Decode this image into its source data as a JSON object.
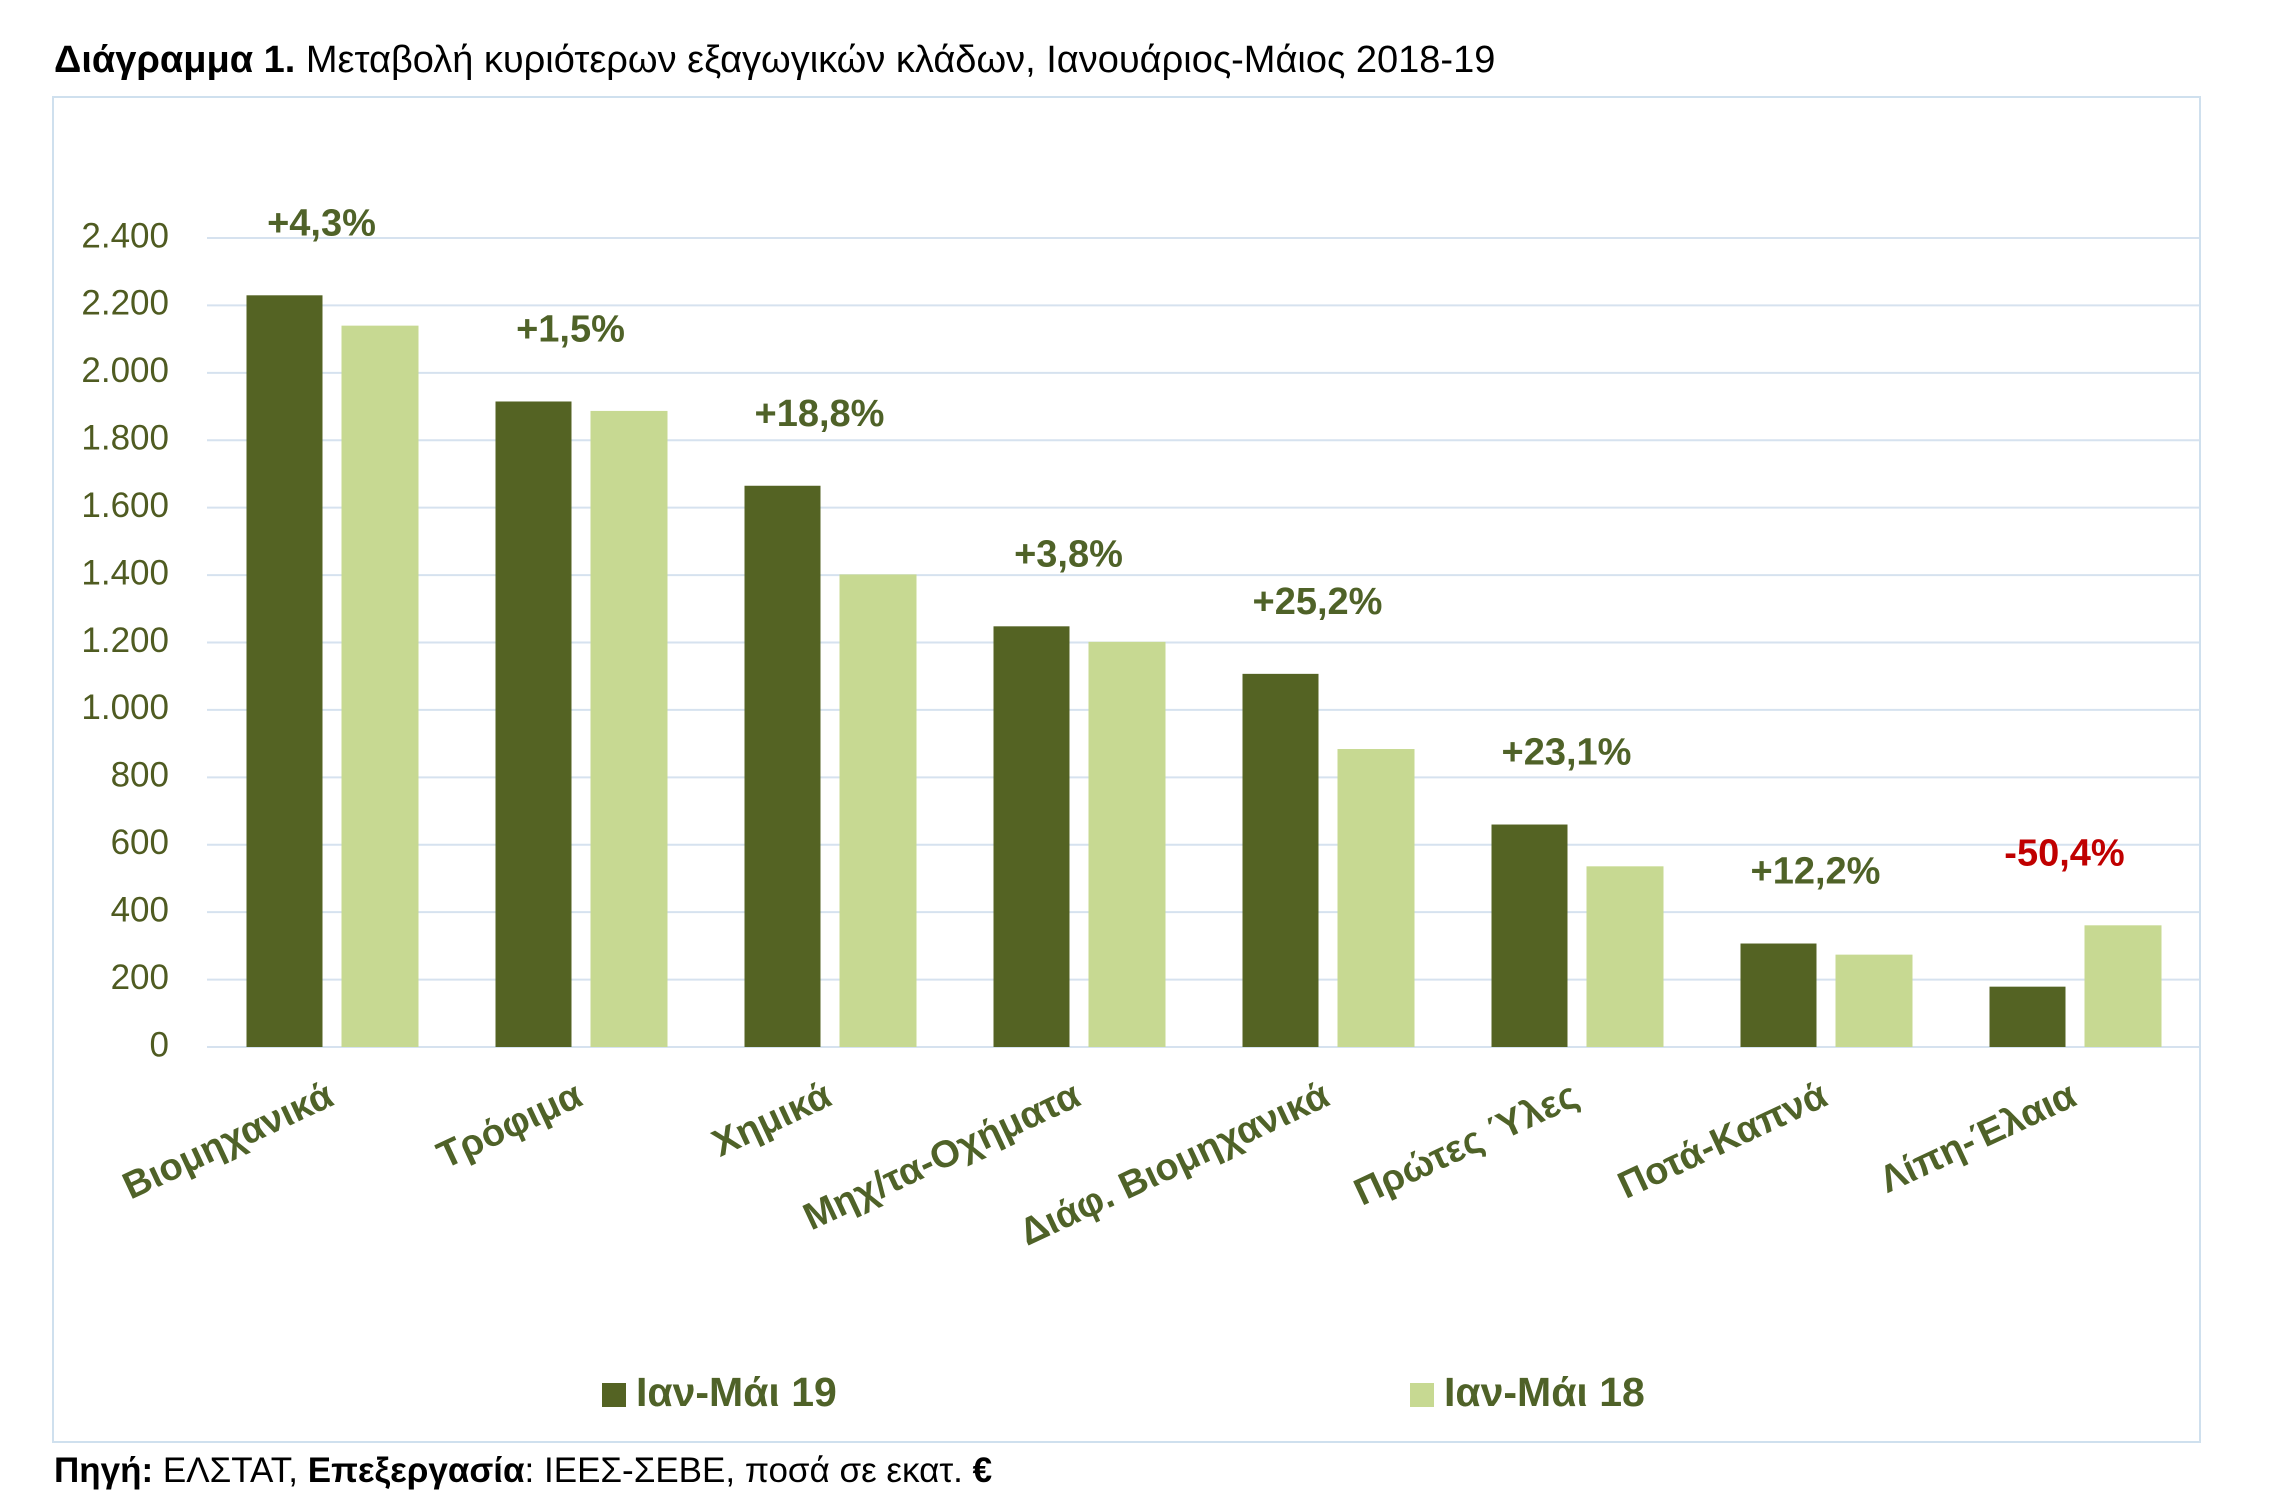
{
  "chart_data": {
    "type": "bar",
    "title_label": "Διάγραμμα 1.",
    "title": "Μεταβολή κυριότερων εξαγωγικών κλάδων, Ιανουάριος-Μάιος 2018-19",
    "categories": [
      "Βιομηχανικά",
      "Τρόφιμα",
      "Χημικά",
      "Μηχ/τα-Οχήματα",
      "Διάφ. Βιομηχανικά",
      "Πρώτες Ύλες",
      "Ποτά-Καπνά",
      "Λίπη-Έλαια"
    ],
    "series": [
      {
        "name": "Ιαν-Μάι 19",
        "color": "#546323",
        "values": [
          2230,
          1915,
          1665,
          1248,
          1107,
          660,
          307,
          179
        ]
      },
      {
        "name": "Ιαν-Μάι 18",
        "color": "#c7d992",
        "values": [
          2140,
          1887,
          1402,
          1202,
          884,
          536,
          274,
          361
        ]
      }
    ],
    "annotations": [
      {
        "text": "+4,3%",
        "color": "#4f6228"
      },
      {
        "text": "+1,5%",
        "color": "#4f6228"
      },
      {
        "text": "+18,8%",
        "color": "#4f6228"
      },
      {
        "text": "+3,8%",
        "color": "#4f6228"
      },
      {
        "text": "+25,2%",
        "color": "#4f6228"
      },
      {
        "text": "+23,1%",
        "color": "#4f6228"
      },
      {
        "text": "+12,2%",
        "color": "#4f6228"
      },
      {
        "text": "-50,4%",
        "color": "#c00000"
      }
    ],
    "ylim": [
      0,
      2400
    ],
    "yticks": [
      0,
      {
        "value": 200,
        "label": "200"
      },
      400,
      600,
      800,
      {
        "value": 1000,
        "label": "1.000"
      },
      {
        "value": 1200,
        "label": "1.200"
      },
      {
        "value": 1400,
        "label": "1.400"
      },
      {
        "value": 1600,
        "label": "1.600"
      },
      {
        "value": 1800,
        "label": "1.800"
      },
      {
        "value": 2000,
        "label": "2.000"
      },
      {
        "value": 2200,
        "label": "2.200"
      },
      {
        "value": 2400,
        "label": "2.400"
      }
    ],
    "grid": true,
    "legend": "bottom",
    "source": [
      {
        "text": "Πηγή:",
        "bold": true
      },
      {
        "text": " ΕΛΣΤΑΤ, ",
        "bold": false
      },
      {
        "text": "Επεξεργασία",
        "bold": true
      },
      {
        "text": ": ΙΕΕΣ-ΣΕΒΕ, ποσά σε εκατ. ",
        "bold": false
      },
      {
        "text": "€",
        "bold": true
      }
    ]
  }
}
